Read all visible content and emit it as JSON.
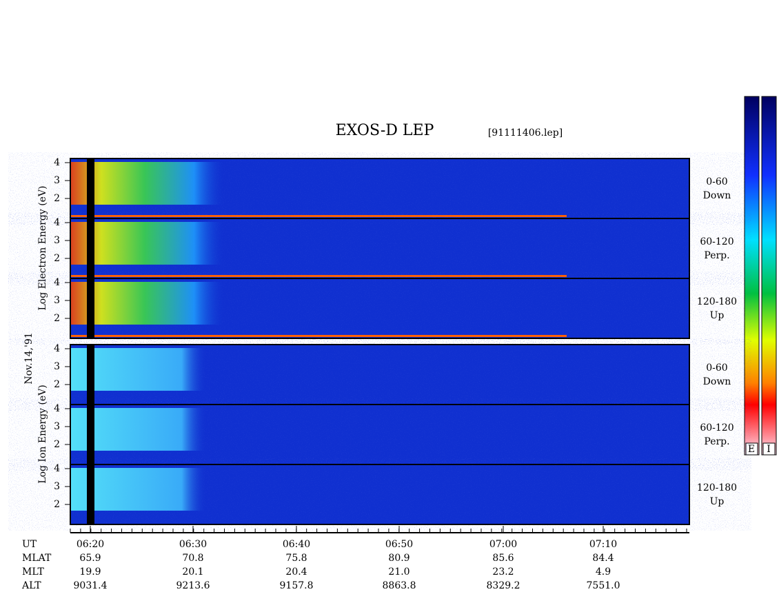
{
  "title": "EXOS-D LEP",
  "file": "[91111406.lep]",
  "date": "Nov.14,'91",
  "electron": {
    "axis_label": "Log  Electron  Energy (eV)",
    "panels": [
      {
        "angle": "0-60",
        "dir": "Down"
      },
      {
        "angle": "60-120",
        "dir": "Perp."
      },
      {
        "angle": "120-180",
        "dir": "Up"
      }
    ]
  },
  "ion": {
    "axis_label": "Log  Ion  Energy (eV)",
    "panels": [
      {
        "angle": "0-60",
        "dir": "Down"
      },
      {
        "angle": "60-120",
        "dir": "Perp."
      },
      {
        "angle": "120-180",
        "dir": "Up"
      }
    ]
  },
  "yticks": [
    "4",
    "3",
    "2"
  ],
  "colorbar_labels": [
    "E",
    "I"
  ],
  "time_rows": [
    {
      "name": "UT",
      "values": [
        "06:20",
        "06:30",
        "06:40",
        "06:50",
        "07:00",
        "07:10"
      ]
    },
    {
      "name": "MLAT",
      "values": [
        "65.9",
        "70.8",
        "75.8",
        "80.9",
        "85.6",
        "84.4"
      ]
    },
    {
      "name": "MLT",
      "values": [
        "19.9",
        "20.1",
        "20.4",
        "21.0",
        "23.2",
        "4.9"
      ]
    },
    {
      "name": "ALT",
      "values": [
        "9031.4",
        "9213.6",
        "9157.8",
        "8863.8",
        "8329.2",
        "7551.0"
      ]
    }
  ]
}
